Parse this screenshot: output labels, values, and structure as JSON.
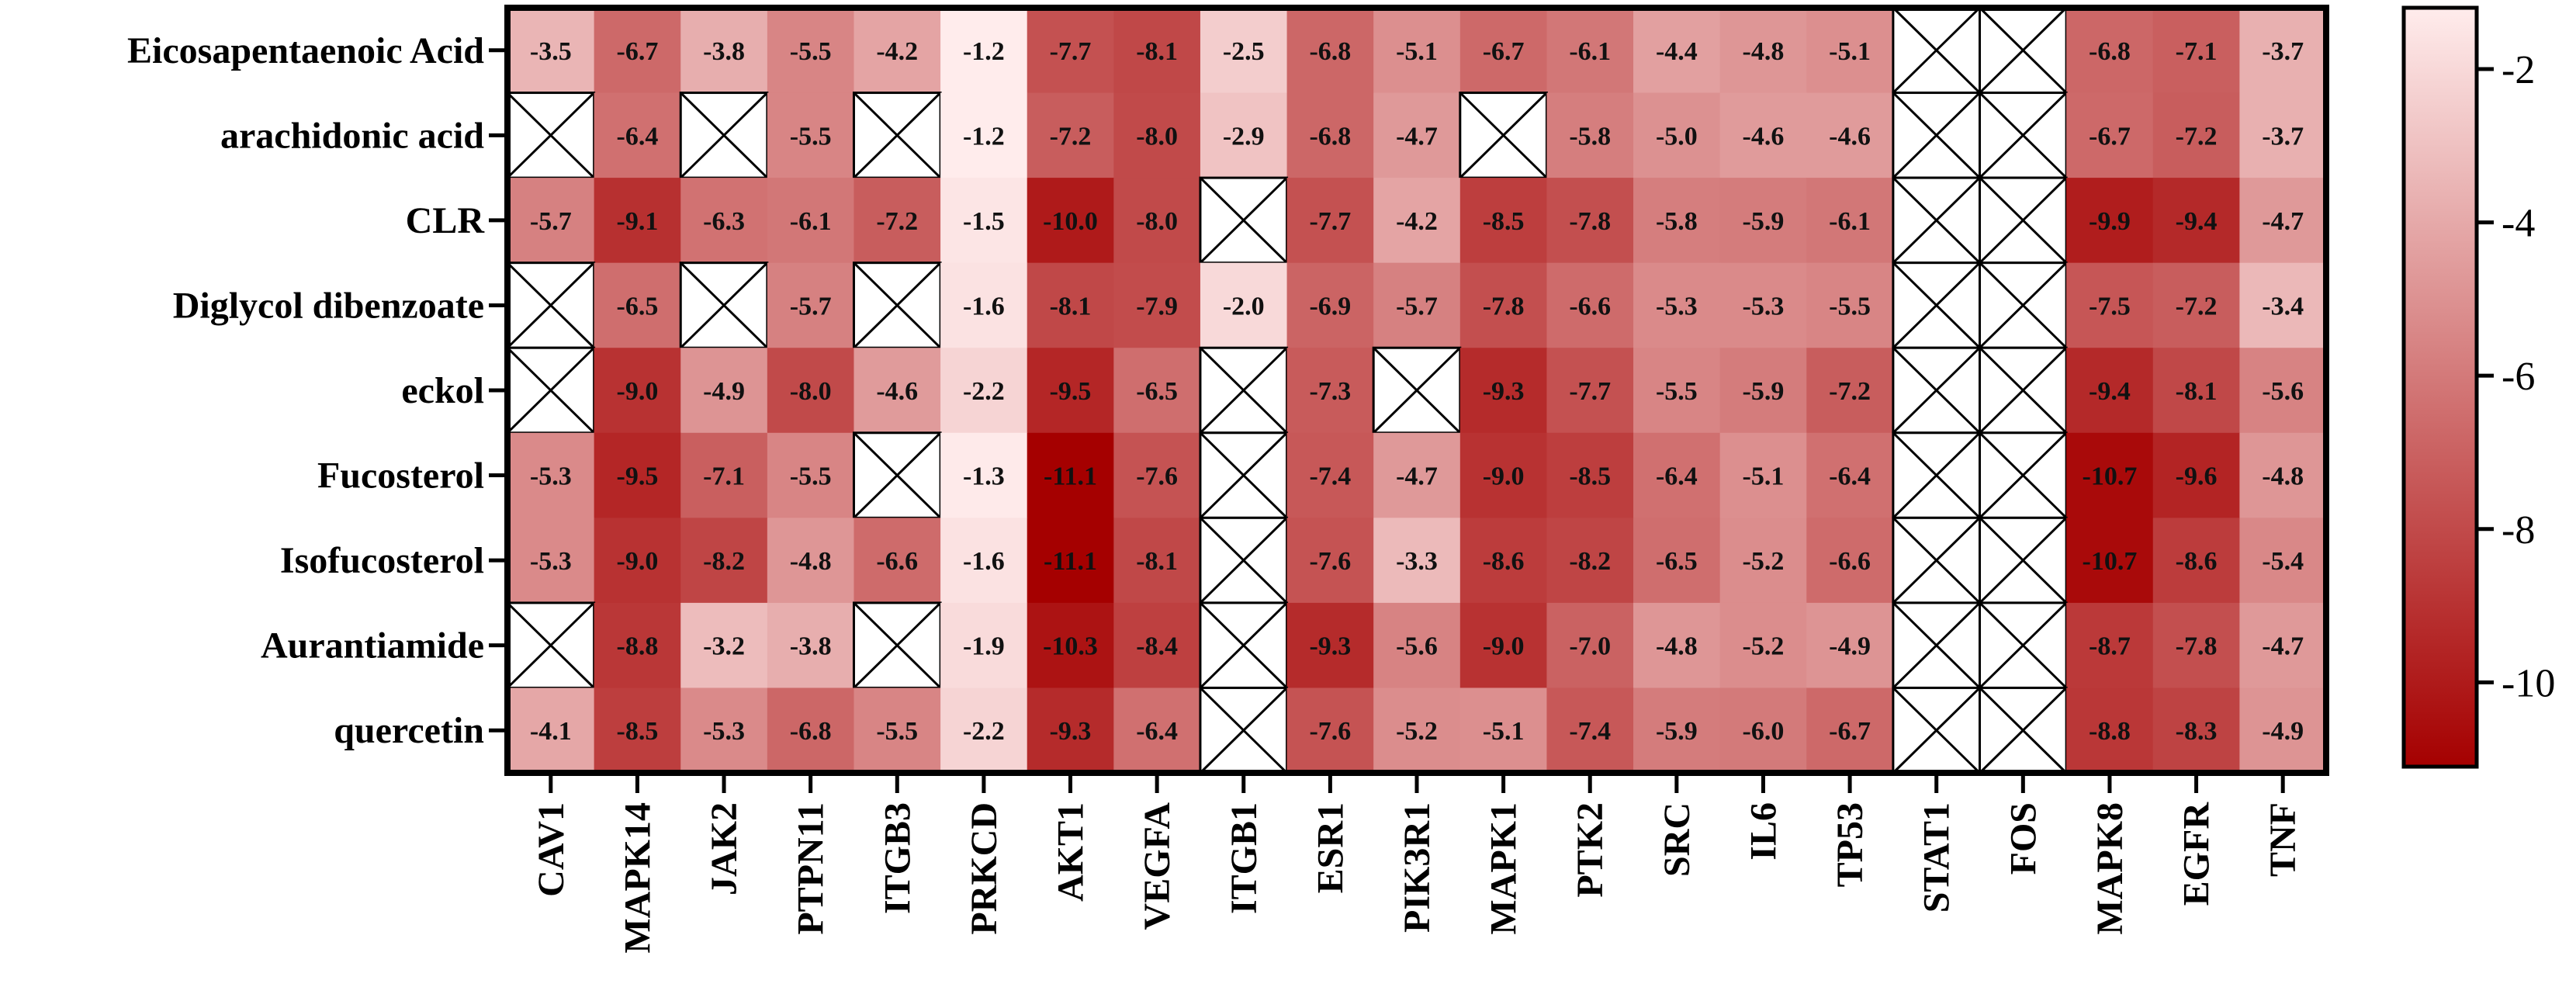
{
  "chart_data": {
    "type": "heatmap",
    "rows": [
      "Eicosapentaenoic Acid",
      "arachidonic acid",
      "CLR",
      "Diglycol dibenzoate",
      "eckol",
      "Fucosterol",
      "Isofucosterol",
      "Aurantiamide",
      "quercetin"
    ],
    "columns": [
      "CAV1",
      "MAPK14",
      "JAK2",
      "PTPN11",
      "ITGB3",
      "PRKCD",
      "AKT1",
      "VEGFA",
      "ITGB1",
      "ESR1",
      "PIK3R1",
      "MAPK1",
      "PTK2",
      "SRC",
      "IL6",
      "TP53",
      "STAT1",
      "FOS",
      "MAPK8",
      "EGFR",
      "TNF"
    ],
    "values": [
      [
        -3.5,
        -6.7,
        -3.8,
        -5.5,
        -4.2,
        -1.2,
        -7.7,
        -8.1,
        -2.5,
        -6.8,
        -5.1,
        -6.7,
        -6.1,
        -4.4,
        -4.8,
        -5.1,
        null,
        null,
        -6.8,
        -7.1,
        -3.7
      ],
      [
        null,
        -6.4,
        null,
        -5.5,
        null,
        -1.2,
        -7.2,
        -8.0,
        -2.9,
        -6.8,
        -4.7,
        null,
        -5.8,
        -5.0,
        -4.6,
        -4.6,
        null,
        null,
        -6.7,
        -7.2,
        -3.7
      ],
      [
        -5.7,
        -9.1,
        -6.3,
        -6.1,
        -7.2,
        -1.5,
        -10.0,
        -8.0,
        null,
        -7.7,
        -4.2,
        -8.5,
        -7.8,
        -5.8,
        -5.9,
        -6.1,
        null,
        null,
        -9.9,
        -9.4,
        -4.7
      ],
      [
        null,
        -6.5,
        null,
        -5.7,
        null,
        -1.6,
        -8.1,
        -7.9,
        -2.0,
        -6.9,
        -5.7,
        -7.8,
        -6.6,
        -5.3,
        -5.3,
        -5.5,
        null,
        null,
        -7.5,
        -7.2,
        -3.4
      ],
      [
        null,
        -9.0,
        -4.9,
        -8.0,
        -4.6,
        -2.2,
        -9.5,
        -6.5,
        null,
        -7.3,
        null,
        -9.3,
        -7.7,
        -5.5,
        -5.9,
        -7.2,
        null,
        null,
        -9.4,
        -8.1,
        -5.6
      ],
      [
        -5.3,
        -9.5,
        -7.1,
        -5.5,
        null,
        -1.3,
        -11.1,
        -7.6,
        null,
        -7.4,
        -4.7,
        -9.0,
        -8.5,
        -6.4,
        -5.1,
        -6.4,
        null,
        null,
        -10.7,
        -9.6,
        -4.8
      ],
      [
        -5.3,
        -9.0,
        -8.2,
        -4.8,
        -6.6,
        -1.6,
        -11.1,
        -8.1,
        null,
        -7.6,
        -3.3,
        -8.6,
        -8.2,
        -6.5,
        -5.2,
        -6.6,
        null,
        null,
        -10.7,
        -8.6,
        -5.4
      ],
      [
        null,
        -8.8,
        -3.2,
        -3.8,
        null,
        -1.9,
        -10.3,
        -8.4,
        null,
        -9.3,
        -5.6,
        -9.0,
        -7.0,
        -4.8,
        -5.2,
        -4.9,
        null,
        null,
        -8.7,
        -7.8,
        -4.7
      ],
      [
        -4.1,
        -8.5,
        -5.3,
        -6.8,
        -5.5,
        -2.2,
        -9.3,
        -6.4,
        null,
        -7.6,
        -5.2,
        -5.1,
        -7.4,
        -5.9,
        -6.0,
        -6.7,
        null,
        null,
        -8.8,
        -8.3,
        -4.9
      ]
    ],
    "colorbar": {
      "range": [
        -11.1,
        -1.2
      ],
      "ticks": [
        "-2",
        "-4",
        "-6",
        "-8",
        "-10"
      ],
      "tick_values": [
        -2,
        -4,
        -6,
        -8,
        -10
      ],
      "color_low": "#a50000",
      "color_high": "#ffecec"
    }
  }
}
